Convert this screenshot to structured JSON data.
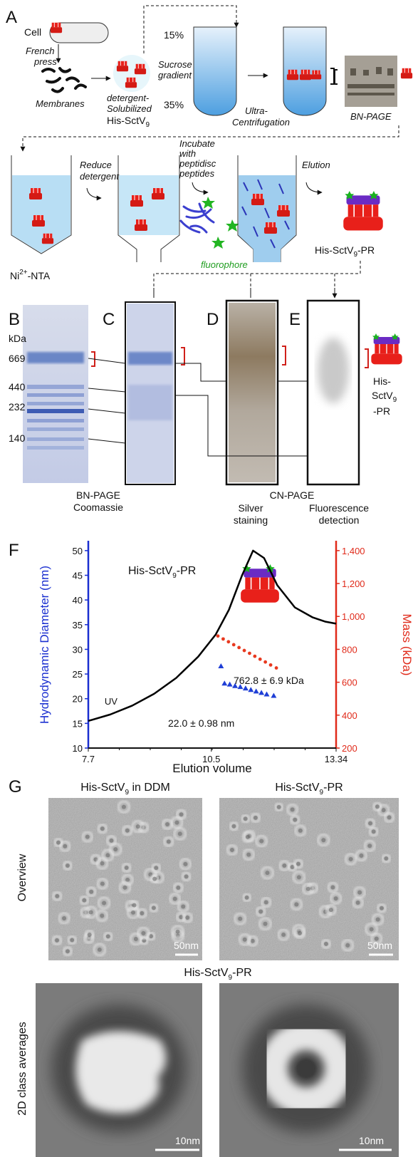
{
  "panel_a": {
    "letter": "A",
    "cell": "Cell",
    "french_press": [
      "French",
      "press"
    ],
    "membranes": "Membranes",
    "solubilized": [
      "detergent-",
      "Solubilized"
    ],
    "solubilized_protein": {
      "main": "His-SctV",
      "sub": "9"
    },
    "sucrose": [
      "Sucrose",
      "gradient"
    ],
    "top_pct": "15%",
    "bottom_pct": "35%",
    "centrifugation": [
      "Ultra-",
      "Centrifugation"
    ],
    "bn_page": "BN-PAGE",
    "reduce": [
      "Reduce",
      "detergent"
    ],
    "incubate": [
      "Incubate",
      "with",
      "peptidisc",
      "peptides"
    ],
    "fluorophore": "fluorophore",
    "elution": "Elution",
    "resin": {
      "main": "Ni",
      "sup": "2+",
      "tail": "-NTA"
    },
    "product": {
      "main": "His-SctV",
      "sub": "9",
      "tail": "-PR"
    }
  },
  "panels_b_e": {
    "letters": [
      "B",
      "C",
      "D",
      "E"
    ],
    "marker_unit": "kDa",
    "markers": [
      "669",
      "440",
      "232",
      "140"
    ],
    "bn_caption": [
      "BN-PAGE",
      "Coomassie"
    ],
    "cn_caption": "CN-PAGE",
    "silver": [
      "Silver",
      "staining"
    ],
    "fluorescence": [
      "Fluorescence",
      "detection"
    ],
    "product": {
      "line1": "His-",
      "main": "SctV",
      "sub": "9",
      "line3": "-PR"
    }
  },
  "chart_data": {
    "type": "line",
    "letter": "F",
    "title": {
      "main": "His-SctV",
      "sub": "9",
      "tail": "-PR"
    },
    "xlabel": "Elution volume",
    "ylabel": "Hydrodynamic Diameter (nm)",
    "y2label": "Mass (kDa)",
    "xlim": [
      7.7,
      13.34
    ],
    "xticks": [
      7.7,
      10.5,
      13.34
    ],
    "ylim": [
      10,
      52
    ],
    "yticks": [
      10,
      15,
      20,
      25,
      30,
      35,
      40,
      45,
      50
    ],
    "y2lim": [
      200,
      1460
    ],
    "y2ticks": [
      200,
      400,
      600,
      800,
      {
        "value": 1000,
        "label": "1,000"
      },
      {
        "value": 1200,
        "label": "1,200"
      },
      {
        "value": 1400,
        "label": "1,400"
      }
    ],
    "ycolor": "#1a2fd0",
    "y2color": "#e02a1a",
    "annotations": {
      "mass": "762.8 ± 6.9 kDa",
      "diameter": "22.0 ± 0.98 nm"
    },
    "series": [
      {
        "name": "UV",
        "color": "#000000",
        "x": [
          7.7,
          8.2,
          8.7,
          9.2,
          9.7,
          10.2,
          10.6,
          10.9,
          11.2,
          11.45,
          11.7,
          12.0,
          12.4,
          12.8,
          13.1,
          13.34
        ],
        "values": [
          15.5,
          16.8,
          18.6,
          21,
          24.2,
          28.5,
          33,
          38,
          45,
          50,
          48.5,
          43,
          38.5,
          36.5,
          35.6,
          35.2
        ]
      },
      {
        "color": "#e8391f",
        "axis": "y2",
        "marker": "circle",
        "x": [
          10.65,
          10.77,
          10.89,
          11.01,
          11.13,
          11.25,
          11.37,
          11.49,
          11.61,
          11.73,
          11.85,
          11.98
        ],
        "values": [
          881,
          863,
          846,
          828,
          811,
          793,
          776,
          758,
          740,
          723,
          705,
          687
        ]
      },
      {
        "color": "#1f3fd6",
        "marker": "triangle",
        "x": [
          10.72,
          10.8,
          10.92,
          11.04,
          11.16,
          11.28,
          11.4,
          11.52,
          11.64,
          11.76,
          11.92
        ],
        "values": [
          26.6,
          23.1,
          22.9,
          22.6,
          22.4,
          22.1,
          21.8,
          21.5,
          21.2,
          20.9,
          20.6
        ]
      }
    ]
  },
  "panel_g": {
    "letter": "G",
    "left_title": {
      "main": "His-SctV",
      "sub": "9",
      "tail": " in DDM"
    },
    "right_title": {
      "main": "His-SctV",
      "sub": "9",
      "tail": "-PR"
    },
    "row1": "Overview",
    "scale1": "50nm",
    "scale2": "50nm",
    "subtitle": {
      "main": "His-SctV",
      "sub": "9",
      "tail": "-PR"
    },
    "row2": "2D class averages",
    "scale3": "10nm",
    "scale4": "10nm"
  }
}
